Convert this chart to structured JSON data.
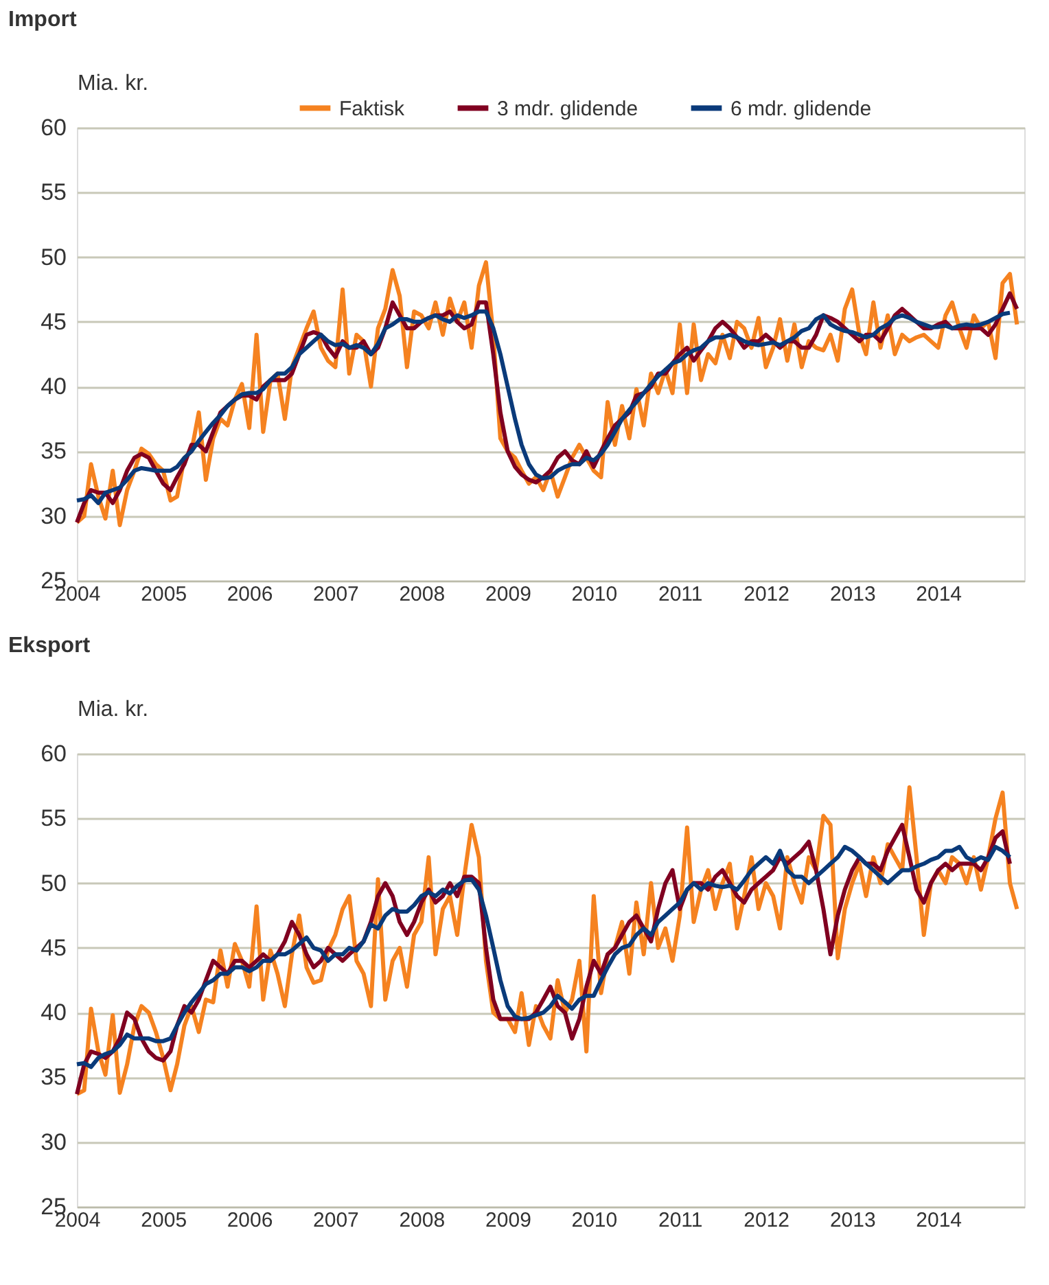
{
  "chart_data": [
    {
      "type": "line",
      "title": "Import",
      "ylabel": "Mia. kr.",
      "legend": "top right",
      "grid": "y",
      "marker": "none",
      "line_style": "solid",
      "x": [
        "2004-01",
        "2004-02",
        "2004-03",
        "2004-04",
        "2004-05",
        "2004-06",
        "2004-07",
        "2004-08",
        "2004-09",
        "2004-10",
        "2004-11",
        "2004-12",
        "2005-01",
        "2005-02",
        "2005-03",
        "2005-04",
        "2005-05",
        "2005-06",
        "2005-07",
        "2005-08",
        "2005-09",
        "2005-10",
        "2005-11",
        "2005-12",
        "2006-01",
        "2006-02",
        "2006-03",
        "2006-04",
        "2006-05",
        "2006-06",
        "2006-07",
        "2006-08",
        "2006-09",
        "2006-10",
        "2006-11",
        "2006-12",
        "2007-01",
        "2007-02",
        "2007-03",
        "2007-04",
        "2007-05",
        "2007-06",
        "2007-07",
        "2007-08",
        "2007-09",
        "2007-10",
        "2007-11",
        "2007-12",
        "2008-01",
        "2008-02",
        "2008-03",
        "2008-04",
        "2008-05",
        "2008-06",
        "2008-07",
        "2008-08",
        "2008-09",
        "2008-10",
        "2008-11",
        "2008-12",
        "2009-01",
        "2009-02",
        "2009-03",
        "2009-04",
        "2009-05",
        "2009-06",
        "2009-07",
        "2009-08",
        "2009-09",
        "2009-10",
        "2009-11",
        "2009-12",
        "2010-01",
        "2010-02",
        "2010-03",
        "2010-04",
        "2010-05",
        "2010-06",
        "2010-07",
        "2010-08",
        "2010-09",
        "2010-10",
        "2010-11",
        "2010-12",
        "2011-01",
        "2011-02",
        "2011-03",
        "2011-04",
        "2011-05",
        "2011-06",
        "2011-07",
        "2011-08",
        "2011-09",
        "2011-10",
        "2011-11",
        "2011-12",
        "2012-01",
        "2012-02",
        "2012-03",
        "2012-04",
        "2012-05",
        "2012-06",
        "2012-07",
        "2012-08",
        "2012-09",
        "2012-10",
        "2012-11",
        "2012-12",
        "2013-01",
        "2013-02",
        "2013-03",
        "2013-04",
        "2013-05",
        "2013-06",
        "2013-07",
        "2013-08",
        "2013-09",
        "2013-10",
        "2013-11",
        "2013-12",
        "2014-01",
        "2014-02",
        "2014-03",
        "2014-04",
        "2014-05",
        "2014-06",
        "2014-07",
        "2014-08",
        "2014-09",
        "2014-10",
        "2014-11",
        "2014-12"
      ],
      "xlim": [
        "2004-01",
        "2015-01"
      ],
      "xticks": [
        "2004",
        "2005",
        "2006",
        "2007",
        "2008",
        "2009",
        "2010",
        "2011",
        "2012",
        "2013",
        "2014"
      ],
      "ylim": [
        25,
        60
      ],
      "yticks": [
        25,
        30,
        35,
        40,
        45,
        50,
        55,
        60
      ],
      "series": [
        {
          "name": "Faktisk",
          "color": "#f58220",
          "values": [
            29.5,
            30,
            34,
            31.5,
            29.8,
            33.5,
            29.3,
            32,
            33.5,
            35.2,
            34.8,
            34,
            33.5,
            31.2,
            31.5,
            34.5,
            35,
            38,
            32.8,
            36,
            37.5,
            37,
            39,
            40.2,
            36.8,
            44,
            36.5,
            40.5,
            41,
            37.5,
            41.5,
            43,
            44.5,
            45.8,
            43,
            42,
            41.5,
            47.5,
            41,
            44,
            43.5,
            40,
            44.5,
            46,
            49,
            47,
            41.5,
            45.8,
            45.5,
            44.5,
            46.5,
            44,
            46.8,
            45,
            46.5,
            43,
            47.8,
            49.6,
            44,
            36,
            35,
            34.5,
            33.5,
            32.5,
            33,
            32,
            33.5,
            31.5,
            33,
            34.5,
            35.5,
            34.5,
            33.5,
            33,
            38.8,
            35.5,
            38.5,
            36,
            39.8,
            37,
            41,
            39.5,
            41.3,
            39.5,
            44.8,
            39.5,
            44.8,
            40.5,
            42.5,
            41.8,
            44,
            42.2,
            45,
            44.5,
            43,
            45.3,
            41.5,
            43,
            45.2,
            42,
            44.8,
            41.5,
            43.5,
            43,
            42.8,
            44,
            42,
            46,
            47.5,
            44,
            42.5,
            46.5,
            43,
            45.5,
            42.5,
            44,
            43.5,
            43.8,
            44,
            43.5,
            43,
            45.5,
            46.5,
            44.5,
            43,
            45.5,
            44.5,
            45,
            42.2,
            48,
            48.7,
            44.8
          ]
        },
        {
          "name": "3 mdr. glidende",
          "color": "#800020",
          "values": [
            29.5,
            31,
            32,
            31.8,
            31.8,
            31,
            32,
            33.5,
            34.5,
            34.8,
            34.5,
            33.5,
            32.5,
            32,
            33,
            34,
            35.5,
            35.5,
            35,
            36.5,
            38,
            38.5,
            39,
            39.3,
            39.3,
            39,
            40,
            40.5,
            40.5,
            40.5,
            41,
            42.5,
            44,
            44.2,
            44,
            43,
            42.3,
            43.5,
            43,
            43,
            43.5,
            42.5,
            43,
            44.5,
            46.5,
            45.5,
            44.5,
            44.5,
            45,
            45.3,
            45.5,
            45.5,
            45.8,
            45,
            44.5,
            44.8,
            46.5,
            46.5,
            42.5,
            38,
            35,
            33.8,
            33.2,
            32.8,
            32.6,
            33,
            33.5,
            34.5,
            35,
            34.3,
            34,
            35,
            33.8,
            35,
            36,
            37,
            37.5,
            38,
            39.3,
            39.5,
            40,
            41,
            41,
            41.8,
            42.5,
            43,
            42,
            42.8,
            43.5,
            44.5,
            45,
            44.5,
            43.8,
            43,
            43.5,
            43.5,
            44,
            43.5,
            43,
            43.5,
            43.5,
            43,
            43,
            44,
            45.5,
            45.3,
            45,
            44.5,
            44,
            43.5,
            44,
            44,
            43.5,
            44.5,
            45.5,
            46,
            45.5,
            45,
            44.5,
            44.5,
            44.8,
            45,
            44.5,
            44.5,
            44.5,
            44.5,
            44.5,
            44,
            44.8,
            46,
            47.2,
            46
          ]
        },
        {
          "name": "6 mdr. glidende",
          "color": "#0a3a7a",
          "values": [
            31.2,
            31.3,
            31.6,
            31,
            31.8,
            32,
            32.2,
            32.8,
            33.5,
            33.7,
            33.6,
            33.5,
            33.5,
            33.5,
            33.8,
            34.5,
            35,
            35.8,
            36.5,
            37.2,
            37.8,
            38.5,
            39,
            39.4,
            39.5,
            39.5,
            39.8,
            40.5,
            41,
            41,
            41.5,
            42.5,
            43,
            43.5,
            44,
            43.5,
            43.2,
            43.3,
            43,
            43.2,
            43,
            42.5,
            43.3,
            44.5,
            44.8,
            45.2,
            45.2,
            45,
            45,
            45.3,
            45.5,
            45.2,
            45,
            45.5,
            45.3,
            45.5,
            45.8,
            45.8,
            44.5,
            42.5,
            40,
            37.5,
            35.5,
            34,
            33.2,
            32.9,
            33,
            33.5,
            33.8,
            34,
            34,
            34.5,
            34.3,
            34.8,
            35.5,
            36.5,
            37.5,
            38.2,
            38.8,
            39.5,
            40.2,
            40.8,
            41.3,
            41.8,
            42,
            42.5,
            42.8,
            43,
            43.5,
            43.8,
            43.8,
            44,
            43.8,
            43.5,
            43.3,
            43.2,
            43.3,
            43.4,
            43.2,
            43.5,
            43.8,
            44.3,
            44.5,
            45.2,
            45.5,
            44.8,
            44.5,
            44.3,
            44.2,
            44,
            43.8,
            44,
            44.5,
            44.8,
            45.3,
            45.5,
            45.3,
            45,
            44.8,
            44.6,
            44.6,
            44.7,
            44.5,
            44.7,
            44.8,
            44.7,
            44.8,
            45,
            45.3,
            45.6,
            45.7,
            null
          ]
        }
      ]
    },
    {
      "type": "line",
      "title": "Eksport",
      "ylabel": "Mia. kr.",
      "legend": "top right",
      "grid": "y",
      "marker": "none",
      "line_style": "solid",
      "x": [
        "2004-01",
        "2004-02",
        "2004-03",
        "2004-04",
        "2004-05",
        "2004-06",
        "2004-07",
        "2004-08",
        "2004-09",
        "2004-10",
        "2004-11",
        "2004-12",
        "2005-01",
        "2005-02",
        "2005-03",
        "2005-04",
        "2005-05",
        "2005-06",
        "2005-07",
        "2005-08",
        "2005-09",
        "2005-10",
        "2005-11",
        "2005-12",
        "2006-01",
        "2006-02",
        "2006-03",
        "2006-04",
        "2006-05",
        "2006-06",
        "2006-07",
        "2006-08",
        "2006-09",
        "2006-10",
        "2006-11",
        "2006-12",
        "2007-01",
        "2007-02",
        "2007-03",
        "2007-04",
        "2007-05",
        "2007-06",
        "2007-07",
        "2007-08",
        "2007-09",
        "2007-10",
        "2007-11",
        "2007-12",
        "2008-01",
        "2008-02",
        "2008-03",
        "2008-04",
        "2008-05",
        "2008-06",
        "2008-07",
        "2008-08",
        "2008-09",
        "2008-10",
        "2008-11",
        "2008-12",
        "2009-01",
        "2009-02",
        "2009-03",
        "2009-04",
        "2009-05",
        "2009-06",
        "2009-07",
        "2009-08",
        "2009-09",
        "2009-10",
        "2009-11",
        "2009-12",
        "2010-01",
        "2010-02",
        "2010-03",
        "2010-04",
        "2010-05",
        "2010-06",
        "2010-07",
        "2010-08",
        "2010-09",
        "2010-10",
        "2010-11",
        "2010-12",
        "2011-01",
        "2011-02",
        "2011-03",
        "2011-04",
        "2011-05",
        "2011-06",
        "2011-07",
        "2011-08",
        "2011-09",
        "2011-10",
        "2011-11",
        "2011-12",
        "2012-01",
        "2012-02",
        "2012-03",
        "2012-04",
        "2012-05",
        "2012-06",
        "2012-07",
        "2012-08",
        "2012-09",
        "2012-10",
        "2012-11",
        "2012-12",
        "2013-01",
        "2013-02",
        "2013-03",
        "2013-04",
        "2013-05",
        "2013-06",
        "2013-07",
        "2013-08",
        "2013-09",
        "2013-10",
        "2013-11",
        "2013-12",
        "2014-01",
        "2014-02",
        "2014-03",
        "2014-04",
        "2014-05",
        "2014-06",
        "2014-07",
        "2014-08",
        "2014-09",
        "2014-10",
        "2014-11",
        "2014-12"
      ],
      "xlim": [
        "2004-01",
        "2015-01"
      ],
      "xticks": [
        "2004",
        "2005",
        "2006",
        "2007",
        "2008",
        "2009",
        "2010",
        "2011",
        "2012",
        "2013",
        "2014"
      ],
      "ylim": [
        25,
        60
      ],
      "yticks": [
        25,
        30,
        35,
        40,
        45,
        50,
        55,
        60
      ],
      "series": [
        {
          "name": "Faktisk",
          "color": "#f58220",
          "values": [
            33.7,
            34,
            40.3,
            37,
            35.2,
            39.8,
            33.8,
            36,
            39,
            40.5,
            40,
            38.5,
            36.5,
            34,
            36,
            39,
            40.5,
            38.5,
            41,
            40.8,
            44.8,
            42,
            45.3,
            44,
            42,
            48.2,
            41,
            44.8,
            43,
            40.5,
            44.5,
            47.5,
            43.5,
            42.3,
            42.5,
            44.8,
            46,
            48,
            49,
            44,
            43,
            40.5,
            50.3,
            41,
            44,
            45,
            42,
            46,
            47,
            52,
            44.5,
            48,
            49,
            46,
            50.5,
            54.5,
            52,
            44,
            40,
            39.5,
            39.5,
            38.5,
            41.5,
            37.5,
            40.5,
            39,
            38,
            42.5,
            40,
            41,
            44,
            37,
            49,
            41.5,
            44.5,
            45,
            47,
            43,
            48.5,
            44.5,
            50,
            45,
            46.5,
            44,
            47.5,
            54.3,
            47,
            49.5,
            51,
            48,
            50,
            51.5,
            46.5,
            49,
            52,
            48,
            50,
            49,
            46.5,
            52,
            50,
            48.5,
            52,
            51,
            55.2,
            54.5,
            44.2,
            48,
            50,
            51.5,
            49,
            52,
            50,
            53,
            52,
            51,
            57.4,
            52,
            46,
            50,
            51,
            50,
            52,
            51.5,
            50,
            52,
            49.5,
            52,
            55,
            57,
            50,
            48
          ]
        },
        {
          "name": "3 mdr. glidende",
          "color": "#800020",
          "values": [
            33.7,
            36,
            37,
            36.8,
            36.5,
            37,
            38,
            40,
            39.5,
            38,
            37,
            36.5,
            36.3,
            37,
            39,
            40.5,
            40,
            41,
            42.5,
            44,
            43.5,
            43,
            44,
            44,
            43.5,
            44,
            44.5,
            44,
            44.5,
            45.5,
            47,
            46,
            44.5,
            43.5,
            44,
            45,
            44.5,
            44,
            44.5,
            45,
            45.5,
            47,
            49,
            50,
            49,
            47,
            46,
            47,
            48.5,
            49.5,
            48.5,
            49,
            50,
            49,
            50.5,
            50.5,
            50,
            45,
            41,
            39.5,
            39.5,
            39.5,
            39.5,
            39.5,
            40,
            41,
            42,
            40.5,
            40,
            38,
            39.5,
            42,
            44,
            43,
            44.5,
            45,
            46,
            47,
            47.5,
            46.5,
            45.5,
            48,
            50,
            51,
            48,
            49.5,
            50,
            50,
            49.5,
            50.5,
            51,
            50,
            49,
            48.5,
            49.5,
            50,
            50.5,
            51,
            52,
            51.5,
            52,
            52.5,
            53.2,
            51,
            48,
            44.5,
            47.5,
            49.5,
            51,
            52,
            51.5,
            51.5,
            51,
            52.5,
            53.5,
            54.5,
            52,
            49.5,
            48.5,
            50,
            51,
            51.5,
            51,
            51.5,
            51.5,
            51.5,
            51,
            52,
            53.5,
            54,
            51.5,
            null
          ]
        },
        {
          "name": "6 mdr. glidende",
          "color": "#0a3a7a",
          "values": [
            36,
            36.1,
            35.8,
            36.5,
            36.8,
            37,
            37.5,
            38.3,
            38,
            38,
            38,
            37.8,
            37.8,
            38,
            39,
            40,
            40.8,
            41.5,
            42.2,
            42.5,
            43,
            43,
            43.5,
            43.5,
            43.2,
            43.5,
            44,
            44,
            44.5,
            44.5,
            44.8,
            45.3,
            45.8,
            45,
            44.8,
            44,
            44.5,
            44.5,
            45,
            44.8,
            45.5,
            46.8,
            46.5,
            47.5,
            48,
            47.8,
            47.8,
            48.3,
            49,
            49.3,
            49,
            49.5,
            49.2,
            49.8,
            50.2,
            50.3,
            49.5,
            47.5,
            45,
            42.5,
            40.5,
            39.7,
            39.5,
            39.6,
            39.8,
            40,
            40.5,
            41.3,
            40.8,
            40.3,
            41,
            41.3,
            41.3,
            42.5,
            43.5,
            44.5,
            45,
            45.2,
            46,
            46.5,
            46,
            47,
            47.5,
            48,
            48.5,
            49.5,
            50,
            49.5,
            50,
            49.8,
            49.7,
            49.8,
            49.5,
            50.2,
            51,
            51.5,
            52,
            51.5,
            52.5,
            51,
            50.5,
            50.5,
            50,
            50.5,
            51,
            51.5,
            52,
            52.8,
            52.5,
            52,
            51.5,
            51,
            50.5,
            50,
            50.5,
            51,
            51,
            51.3,
            51.5,
            51.8,
            52,
            52.5,
            52.5,
            52.8,
            52,
            51.7,
            52,
            51.8,
            52.8,
            52.5,
            52,
            null
          ]
        }
      ]
    }
  ]
}
